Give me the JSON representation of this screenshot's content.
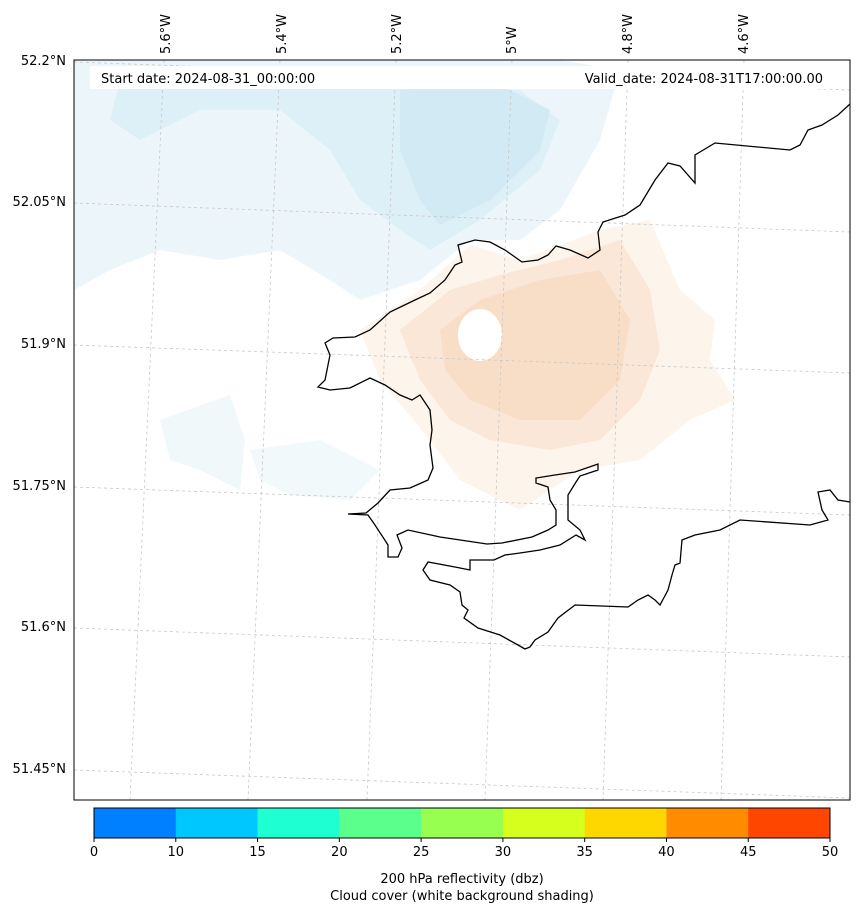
{
  "header": {
    "start_date": "Start date: 2024-08-31_00:00:00",
    "valid_date": "Valid_date: 2024-08-31T17:00:00.00"
  },
  "grid": {
    "longitudes": [
      "5.6°W",
      "5.4°W",
      "5.2°W",
      "5°W",
      "4.8°W",
      "4.6°W"
    ],
    "latitudes": [
      "52.2°N",
      "52.05°N",
      "51.9°N",
      "51.75°N",
      "51.6°N",
      "51.45°N"
    ]
  },
  "colorbar": {
    "ticks": [
      "0",
      "10",
      "15",
      "20",
      "25",
      "30",
      "35",
      "40",
      "45",
      "50"
    ],
    "colors": [
      "#0080ff",
      "#00c8ff",
      "#1effd2",
      "#5aff8c",
      "#96ff50",
      "#d7ff1e",
      "#ffd700",
      "#ff8c00",
      "#ff4600"
    ],
    "caption_line1": "200 hPa reflectivity (dbz)",
    "caption_line2": "Cloud cover (white background shading)"
  },
  "colors": {
    "coast": "#000000",
    "cloud_blue": "#cfe9f2",
    "cloud_orange": "#f9dcc4",
    "grid": "#c8c8c8"
  }
}
